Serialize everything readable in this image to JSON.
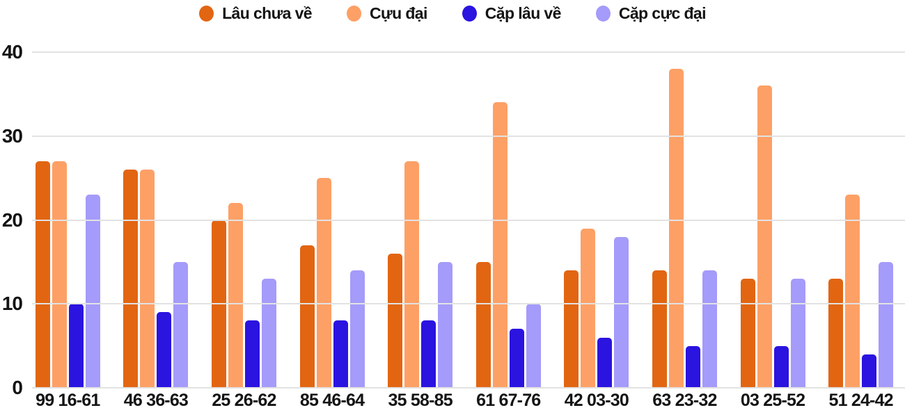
{
  "chart_data": {
    "type": "bar",
    "title": "",
    "xlabel": "",
    "ylabel": "",
    "categories": [
      "99 16-61",
      "46 36-63",
      "25 26-62",
      "85 46-64",
      "35 58-85",
      "61 67-76",
      "42 03-30",
      "63 23-32",
      "03 25-52",
      "51 24-42"
    ],
    "series": [
      {
        "name": "Lâu chưa về",
        "color": "#e26512",
        "values": [
          27,
          26,
          20,
          17,
          16,
          15,
          14,
          14,
          13,
          13
        ]
      },
      {
        "name": "Cựu đại",
        "color": "#fda066",
        "values": [
          27,
          26,
          22,
          25,
          27,
          34,
          19,
          38,
          36,
          23
        ]
      },
      {
        "name": "Cặp lâu về",
        "color": "#2b13e0",
        "values": [
          10,
          9,
          8,
          8,
          8,
          7,
          6,
          5,
          5,
          4
        ]
      },
      {
        "name": "Cặp cực đại",
        "color": "#a49bfa",
        "values": [
          23,
          15,
          13,
          14,
          15,
          10,
          18,
          14,
          13,
          15
        ]
      }
    ],
    "ylim": [
      0,
      40
    ],
    "yticks": [
      0,
      10,
      20,
      30,
      40
    ],
    "grid": "horizontal",
    "legend_position": "top"
  },
  "colors": {
    "background": "#ffffff",
    "gridline": "#e2e2e2",
    "text": "#141414"
  }
}
